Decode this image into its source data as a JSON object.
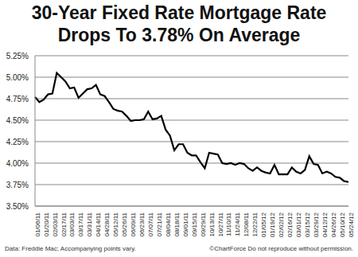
{
  "chart_data": {
    "type": "line",
    "title": [
      "30-Year Fixed Rate Mortgage Rate",
      "Drops To 3.78% On Average"
    ],
    "annotations": [
      "Data: Freddie Mac; Accompanying points vary.",
      "©ChartForce  Do not reproduce without permission."
    ],
    "categories": [
      "01/06/11",
      null,
      "01/20/11",
      null,
      "02/03/11",
      null,
      "02/17/11",
      null,
      "03/03/11",
      null,
      "03/17/11",
      null,
      "03/31/11",
      null,
      "04/14/11",
      null,
      "04/28/11",
      null,
      "05/12/11",
      null,
      "05/26/11",
      null,
      "06/09/11",
      null,
      "06/23/11",
      null,
      "07/07/11",
      null,
      "07/21/11",
      null,
      "08/04/11",
      null,
      "08/18/11",
      null,
      "09/01/11",
      null,
      "09/15/11",
      null,
      "09/29/11",
      null,
      "10/13/11",
      null,
      "10/27/11",
      null,
      "11/10/11",
      null,
      "11/24/11",
      null,
      "12/08/11",
      null,
      "12/22/11",
      null,
      "01/05/12",
      null,
      "01/19/12",
      null,
      "02/02/12",
      null,
      "02/16/12",
      null,
      "03/01/12",
      null,
      "03/15/12",
      null,
      "03/29/12",
      null,
      "04/12/12",
      null,
      "04/26/12",
      null,
      "05/10/12",
      null,
      "05/24/12"
    ],
    "values": [
      4.77,
      4.71,
      4.74,
      4.8,
      4.81,
      5.05,
      5.0,
      4.95,
      4.87,
      4.88,
      4.76,
      4.81,
      4.86,
      4.87,
      4.91,
      4.8,
      4.78,
      4.71,
      4.63,
      4.61,
      4.6,
      4.55,
      4.49,
      4.5,
      4.5,
      4.51,
      4.6,
      4.51,
      4.52,
      4.55,
      4.39,
      4.32,
      4.15,
      4.22,
      4.22,
      4.12,
      4.09,
      4.09,
      4.01,
      3.94,
      4.12,
      4.11,
      4.1,
      4.0,
      3.99,
      4.0,
      3.98,
      4.0,
      3.99,
      3.94,
      3.91,
      3.95,
      3.91,
      3.89,
      3.88,
      3.98,
      3.87,
      3.87,
      3.87,
      3.95,
      3.9,
      3.88,
      3.92,
      4.08,
      3.99,
      3.98,
      3.88,
      3.9,
      3.88,
      3.84,
      3.83,
      3.79,
      3.78
    ],
    "color": "#000000",
    "ylim": [
      3.5,
      5.25
    ],
    "yticks": [
      {
        "value": 3.5,
        "label": "3.50%"
      },
      {
        "value": 3.75,
        "label": "3.75%"
      },
      {
        "value": 4,
        "label": "4.00%"
      },
      {
        "value": 4.25,
        "label": "4.25%"
      },
      {
        "value": 4.5,
        "label": "4.50%"
      },
      {
        "value": 4.75,
        "label": "4.75%"
      },
      {
        "value": 5,
        "label": "5.00%"
      },
      {
        "value": 5.25,
        "label": "5.25%"
      }
    ],
    "grid": true
  }
}
